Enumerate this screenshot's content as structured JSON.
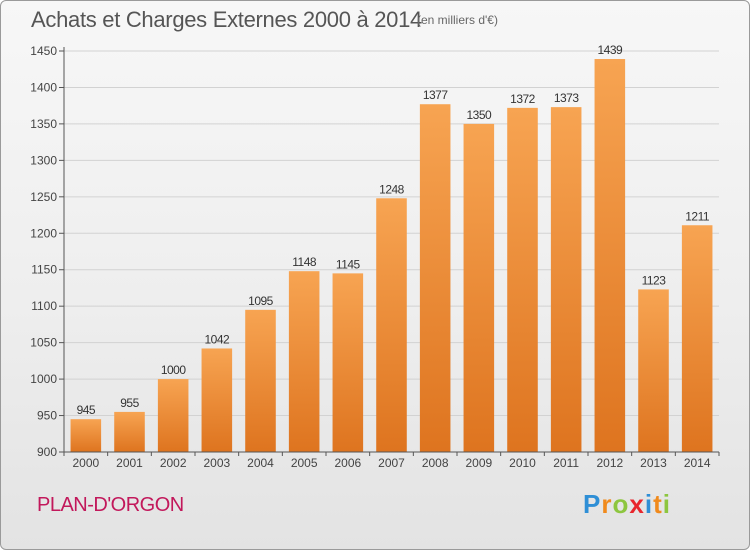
{
  "header": {
    "title": "Achats et Charges Externes 2000 à 2014",
    "subtitle": "(en milliers d'€)"
  },
  "footer": {
    "commune": "PLAN-D'ORGON",
    "logo_text": "Proxiti",
    "logo_colors": [
      "#2f8fd6",
      "#f08a1c",
      "#8dc63f",
      "#e8262d",
      "#2f8fd6",
      "#f08a1c",
      "#8dc63f"
    ]
  },
  "chart_data": {
    "type": "bar",
    "title": "Achats et Charges Externes 2000 à 2014",
    "subtitle": "(en milliers d'€)",
    "categories": [
      "2000",
      "2001",
      "2002",
      "2003",
      "2004",
      "2005",
      "2006",
      "2007",
      "2008",
      "2009",
      "2010",
      "2011",
      "2012",
      "2013",
      "2014"
    ],
    "values": [
      945,
      955,
      1000,
      1042,
      1095,
      1148,
      1145,
      1248,
      1377,
      1350,
      1372,
      1373,
      1439,
      1123,
      1211
    ],
    "xlabel": "",
    "ylabel": "",
    "ylim": [
      900,
      1450
    ],
    "yticks": [
      900,
      950,
      1000,
      1050,
      1100,
      1150,
      1200,
      1250,
      1300,
      1350,
      1400,
      1450
    ],
    "grid": true,
    "bar_color": "#f0923a",
    "bar_color_dark": "#dd7020"
  }
}
